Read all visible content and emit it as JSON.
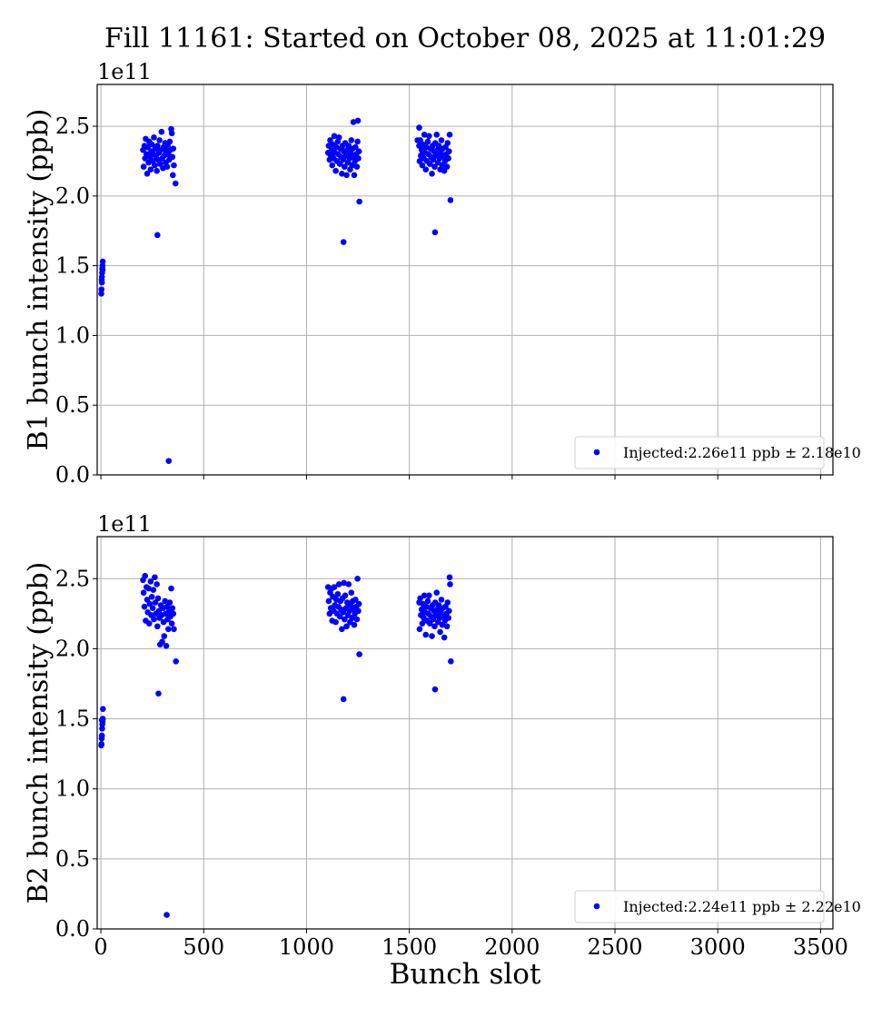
{
  "chart_data": {
    "title": "Fill 11161: Started on October 08, 2025 at 11:01:29",
    "type": "scatter",
    "xlabel": "Bunch slot",
    "xlim": [
      -18,
      3560
    ],
    "xticks": [
      0,
      500,
      1000,
      1500,
      2000,
      2500,
      3000,
      3500
    ],
    "grid": true,
    "color": "#0000ff",
    "panels": [
      {
        "ylabel": "B1 bunch intensity (ppb)",
        "offset_text": "1e11",
        "ylim": [
          0,
          2.8
        ],
        "yticks": [
          "0.0",
          "0.5",
          "1.0",
          "1.5",
          "2.0",
          "2.5"
        ],
        "legend": {
          "label": "Injected:2.26e11 ppb ± 2.18e10",
          "placement": "lower-right"
        },
        "points": [
          [
            2,
            1.3
          ],
          [
            3,
            1.33
          ],
          [
            4,
            1.4
          ],
          [
            5,
            1.42
          ],
          [
            6,
            1.45
          ],
          [
            7,
            1.48
          ],
          [
            8,
            1.5
          ],
          [
            9,
            1.53
          ],
          [
            5,
            1.38
          ],
          [
            8,
            1.47
          ],
          [
            205,
            2.33
          ],
          [
            208,
            2.21
          ],
          [
            212,
            2.36
          ],
          [
            215,
            2.27
          ],
          [
            218,
            2.41
          ],
          [
            222,
            2.3
          ],
          [
            225,
            2.16
          ],
          [
            228,
            2.35
          ],
          [
            232,
            2.24
          ],
          [
            235,
            2.39
          ],
          [
            238,
            2.28
          ],
          [
            242,
            2.19
          ],
          [
            245,
            2.32
          ],
          [
            248,
            2.37
          ],
          [
            252,
            2.25
          ],
          [
            255,
            2.3
          ],
          [
            258,
            2.42
          ],
          [
            262,
            2.22
          ],
          [
            265,
            2.34
          ],
          [
            268,
            2.28
          ],
          [
            272,
            2.18
          ],
          [
            275,
            2.36
          ],
          [
            278,
            2.26
          ],
          [
            282,
            2.31
          ],
          [
            285,
            2.4
          ],
          [
            288,
            2.23
          ],
          [
            292,
            2.33
          ],
          [
            295,
            2.46
          ],
          [
            298,
            2.27
          ],
          [
            302,
            2.2
          ],
          [
            305,
            2.35
          ],
          [
            308,
            2.29
          ],
          [
            312,
            2.38
          ],
          [
            315,
            2.24
          ],
          [
            318,
            2.32
          ],
          [
            322,
            2.21
          ],
          [
            325,
            2.36
          ],
          [
            328,
            2.3
          ],
          [
            332,
            2.26
          ],
          [
            335,
            2.39
          ],
          [
            338,
            2.33
          ],
          [
            342,
            2.48
          ],
          [
            345,
            2.45
          ],
          [
            348,
            2.28
          ],
          [
            350,
            2.15
          ],
          [
            352,
            2.34
          ],
          [
            355,
            2.22
          ],
          [
            1105,
            2.31
          ],
          [
            1108,
            2.36
          ],
          [
            1112,
            2.26
          ],
          [
            1115,
            2.4
          ],
          [
            1118,
            2.29
          ],
          [
            1122,
            2.33
          ],
          [
            1125,
            2.22
          ],
          [
            1128,
            2.37
          ],
          [
            1132,
            2.27
          ],
          [
            1135,
            2.43
          ],
          [
            1138,
            2.31
          ],
          [
            1142,
            2.18
          ],
          [
            1145,
            2.35
          ],
          [
            1148,
            2.25
          ],
          [
            1152,
            2.39
          ],
          [
            1155,
            2.3
          ],
          [
            1158,
            2.42
          ],
          [
            1162,
            2.23
          ],
          [
            1165,
            2.34
          ],
          [
            1168,
            2.28
          ],
          [
            1172,
            2.16
          ],
          [
            1175,
            2.36
          ],
          [
            1178,
            2.26
          ],
          [
            1182,
            2.32
          ],
          [
            1185,
            2.21
          ],
          [
            1188,
            2.38
          ],
          [
            1192,
            2.29
          ],
          [
            1195,
            2.15
          ],
          [
            1198,
            2.33
          ],
          [
            1202,
            2.24
          ],
          [
            1205,
            2.36
          ],
          [
            1208,
            2.27
          ],
          [
            1212,
            2.19
          ],
          [
            1215,
            2.31
          ],
          [
            1218,
            2.4
          ],
          [
            1222,
            2.22
          ],
          [
            1225,
            2.34
          ],
          [
            1228,
            2.28
          ],
          [
            1232,
            2.15
          ],
          [
            1235,
            2.25
          ],
          [
            1238,
            2.35
          ],
          [
            1242,
            2.3
          ],
          [
            1245,
            2.21
          ],
          [
            1248,
            2.39
          ],
          [
            1252,
            2.27
          ],
          [
            1255,
            2.32
          ],
          [
            1548,
            2.36
          ],
          [
            1550,
            2.25
          ],
          [
            1553,
            2.4
          ],
          [
            1556,
            2.29
          ],
          [
            1560,
            2.33
          ],
          [
            1563,
            2.22
          ],
          [
            1566,
            2.37
          ],
          [
            1570,
            2.27
          ],
          [
            1573,
            2.44
          ],
          [
            1576,
            2.31
          ],
          [
            1580,
            2.19
          ],
          [
            1583,
            2.35
          ],
          [
            1586,
            2.25
          ],
          [
            1590,
            2.39
          ],
          [
            1593,
            2.3
          ],
          [
            1596,
            2.43
          ],
          [
            1600,
            2.23
          ],
          [
            1603,
            2.34
          ],
          [
            1606,
            2.28
          ],
          [
            1610,
            2.16
          ],
          [
            1613,
            2.36
          ],
          [
            1616,
            2.26
          ],
          [
            1620,
            2.32
          ],
          [
            1623,
            2.21
          ],
          [
            1626,
            2.38
          ],
          [
            1630,
            2.29
          ],
          [
            1633,
            2.44
          ],
          [
            1636,
            2.33
          ],
          [
            1640,
            2.24
          ],
          [
            1643,
            2.36
          ],
          [
            1646,
            2.27
          ],
          [
            1650,
            2.19
          ],
          [
            1653,
            2.31
          ],
          [
            1656,
            2.4
          ],
          [
            1660,
            2.22
          ],
          [
            1663,
            2.34
          ],
          [
            1666,
            2.28
          ],
          [
            1670,
            2.18
          ],
          [
            1673,
            2.25
          ],
          [
            1676,
            2.35
          ],
          [
            1680,
            2.3
          ],
          [
            1683,
            2.21
          ],
          [
            1686,
            2.38
          ],
          [
            1690,
            2.27
          ],
          [
            1693,
            2.32
          ],
          [
            1696,
            2.44
          ],
          [
            275,
            1.72
          ],
          [
            330,
            0.1
          ],
          [
            363,
            2.09
          ],
          [
            1180,
            1.67
          ],
          [
            1257,
            1.96
          ],
          [
            1625,
            1.74
          ],
          [
            1700,
            1.97
          ],
          [
            1228,
            2.53
          ],
          [
            1250,
            2.54
          ],
          [
            1548,
            2.49
          ],
          [
            1540,
            2.4
          ]
        ]
      },
      {
        "ylabel": "B2 bunch intensity (ppb)",
        "offset_text": "1e11",
        "ylim": [
          0,
          2.8
        ],
        "yticks": [
          "0.0",
          "0.5",
          "1.0",
          "1.5",
          "2.0",
          "2.5"
        ],
        "legend": {
          "label": "Injected:2.24e11 ppb ± 2.22e10",
          "placement": "lower-right"
        },
        "points": [
          [
            2,
            1.31
          ],
          [
            3,
            1.32
          ],
          [
            4,
            1.36
          ],
          [
            5,
            1.38
          ],
          [
            6,
            1.43
          ],
          [
            7,
            1.46
          ],
          [
            8,
            1.48
          ],
          [
            9,
            1.5
          ],
          [
            10,
            1.57
          ],
          [
            5,
            1.49
          ],
          [
            205,
            2.49
          ],
          [
            208,
            2.4
          ],
          [
            212,
            2.3
          ],
          [
            215,
            2.52
          ],
          [
            218,
            2.2
          ],
          [
            222,
            2.44
          ],
          [
            225,
            2.35
          ],
          [
            228,
            2.26
          ],
          [
            232,
            2.43
          ],
          [
            235,
            2.18
          ],
          [
            238,
            2.32
          ],
          [
            242,
            2.48
          ],
          [
            245,
            2.24
          ],
          [
            248,
            2.37
          ],
          [
            252,
            2.29
          ],
          [
            255,
            2.42
          ],
          [
            258,
            2.21
          ],
          [
            262,
            2.51
          ],
          [
            265,
            2.33
          ],
          [
            268,
            2.25
          ],
          [
            272,
            2.46
          ],
          [
            275,
            2.16
          ],
          [
            278,
            2.36
          ],
          [
            282,
            2.27
          ],
          [
            285,
            2.22
          ],
          [
            288,
            2.03
          ],
          [
            292,
            2.31
          ],
          [
            295,
            2.24
          ],
          [
            298,
            2.05
          ],
          [
            302,
            2.29
          ],
          [
            305,
            2.19
          ],
          [
            308,
            2.09
          ],
          [
            312,
            2.34
          ],
          [
            315,
            2.25
          ],
          [
            318,
            2.02
          ],
          [
            322,
            2.3
          ],
          [
            325,
            2.21
          ],
          [
            328,
            2.14
          ],
          [
            332,
            2.27
          ],
          [
            335,
            2.33
          ],
          [
            338,
            2.23
          ],
          [
            342,
            2.43
          ],
          [
            345,
            2.18
          ],
          [
            348,
            2.29
          ],
          [
            352,
            2.25
          ],
          [
            355,
            2.14
          ],
          [
            1105,
            2.44
          ],
          [
            1108,
            2.34
          ],
          [
            1112,
            2.25
          ],
          [
            1115,
            2.4
          ],
          [
            1118,
            2.29
          ],
          [
            1122,
            2.43
          ],
          [
            1125,
            2.2
          ],
          [
            1128,
            2.37
          ],
          [
            1132,
            2.27
          ],
          [
            1135,
            2.44
          ],
          [
            1138,
            2.31
          ],
          [
            1142,
            2.19
          ],
          [
            1145,
            2.35
          ],
          [
            1148,
            2.25
          ],
          [
            1152,
            2.39
          ],
          [
            1155,
            2.3
          ],
          [
            1158,
            2.46
          ],
          [
            1162,
            2.23
          ],
          [
            1165,
            2.34
          ],
          [
            1168,
            2.28
          ],
          [
            1172,
            2.14
          ],
          [
            1175,
            2.36
          ],
          [
            1178,
            2.26
          ],
          [
            1182,
            2.47
          ],
          [
            1185,
            2.21
          ],
          [
            1188,
            2.38
          ],
          [
            1192,
            2.29
          ],
          [
            1195,
            2.16
          ],
          [
            1198,
            2.33
          ],
          [
            1202,
            2.24
          ],
          [
            1205,
            2.46
          ],
          [
            1208,
            2.27
          ],
          [
            1212,
            2.19
          ],
          [
            1215,
            2.31
          ],
          [
            1218,
            2.4
          ],
          [
            1222,
            2.22
          ],
          [
            1225,
            2.34
          ],
          [
            1228,
            2.28
          ],
          [
            1232,
            2.17
          ],
          [
            1235,
            2.25
          ],
          [
            1238,
            2.35
          ],
          [
            1242,
            2.3
          ],
          [
            1245,
            2.21
          ],
          [
            1248,
            2.5
          ],
          [
            1252,
            2.27
          ],
          [
            1255,
            2.32
          ],
          [
            1548,
            2.33
          ],
          [
            1550,
            2.14
          ],
          [
            1553,
            2.36
          ],
          [
            1556,
            2.24
          ],
          [
            1560,
            2.28
          ],
          [
            1563,
            2.18
          ],
          [
            1566,
            2.32
          ],
          [
            1570,
            2.22
          ],
          [
            1573,
            2.38
          ],
          [
            1576,
            2.26
          ],
          [
            1580,
            2.1
          ],
          [
            1583,
            2.3
          ],
          [
            1586,
            2.2
          ],
          [
            1590,
            2.34
          ],
          [
            1593,
            2.25
          ],
          [
            1596,
            2.38
          ],
          [
            1600,
            2.18
          ],
          [
            1603,
            2.29
          ],
          [
            1606,
            2.23
          ],
          [
            1610,
            2.09
          ],
          [
            1613,
            2.31
          ],
          [
            1616,
            2.21
          ],
          [
            1620,
            2.27
          ],
          [
            1623,
            2.16
          ],
          [
            1626,
            2.33
          ],
          [
            1630,
            2.24
          ],
          [
            1633,
            2.4
          ],
          [
            1636,
            2.28
          ],
          [
            1640,
            2.19
          ],
          [
            1643,
            2.31
          ],
          [
            1646,
            2.22
          ],
          [
            1650,
            2.12
          ],
          [
            1653,
            2.26
          ],
          [
            1656,
            2.35
          ],
          [
            1660,
            2.17
          ],
          [
            1663,
            2.29
          ],
          [
            1666,
            2.23
          ],
          [
            1670,
            2.08
          ],
          [
            1673,
            2.2
          ],
          [
            1676,
            2.3
          ],
          [
            1680,
            2.25
          ],
          [
            1683,
            2.16
          ],
          [
            1686,
            2.33
          ],
          [
            1690,
            2.22
          ],
          [
            1693,
            2.27
          ],
          [
            1696,
            2.51
          ],
          [
            1698,
            2.46
          ],
          [
            280,
            1.68
          ],
          [
            320,
            0.1
          ],
          [
            365,
            1.91
          ],
          [
            1180,
            1.64
          ],
          [
            1257,
            1.96
          ],
          [
            1625,
            1.71
          ],
          [
            1702,
            1.91
          ]
        ]
      }
    ]
  }
}
